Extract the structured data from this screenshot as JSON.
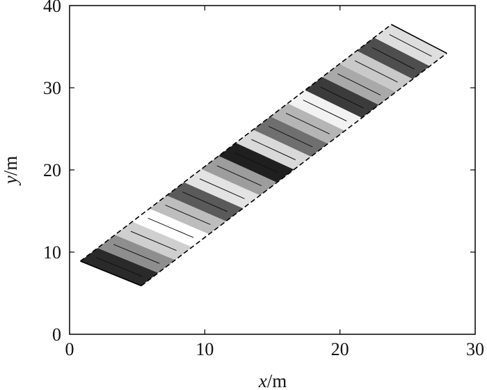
{
  "chart_data": {
    "type": "area",
    "title": "",
    "xlabel": {
      "var": "x",
      "unit": "/m"
    },
    "ylabel": {
      "var": "y",
      "unit": "/m"
    },
    "xlim": [
      0,
      30
    ],
    "ylim": [
      0,
      40
    ],
    "xticks": [
      {
        "value": 0,
        "label": "0"
      },
      {
        "value": 10,
        "label": "10"
      },
      {
        "value": 20,
        "label": "20"
      },
      {
        "value": 30,
        "label": "30"
      }
    ],
    "yticks": [
      {
        "value": 0,
        "label": "0"
      },
      {
        "value": 10,
        "label": "10"
      },
      {
        "value": 20,
        "label": "20"
      },
      {
        "value": 30,
        "label": "30"
      },
      {
        "value": 40,
        "label": "40"
      }
    ],
    "grid": false,
    "legend": "none",
    "region": {
      "outline": [
        [
          0.8,
          8.9
        ],
        [
          5.3,
          5.9
        ],
        [
          27.9,
          34.2
        ],
        [
          23.8,
          37.7
        ]
      ],
      "stripe_count": 18,
      "stripe_shades": [
        "#2a2a2a",
        "#8e8e8e",
        "#cfcfcf",
        "#ffffff",
        "#bdbdbd",
        "#5a5a5a",
        "#e3e3e3",
        "#9d9d9d",
        "#1f1f1f",
        "#d9d9d9",
        "#6f6f6f",
        "#b5b5b5",
        "#f2f2f2",
        "#3b3b3b",
        "#a9a9a9",
        "#c9c9c9",
        "#4e4e4e",
        "#dedede"
      ]
    }
  }
}
